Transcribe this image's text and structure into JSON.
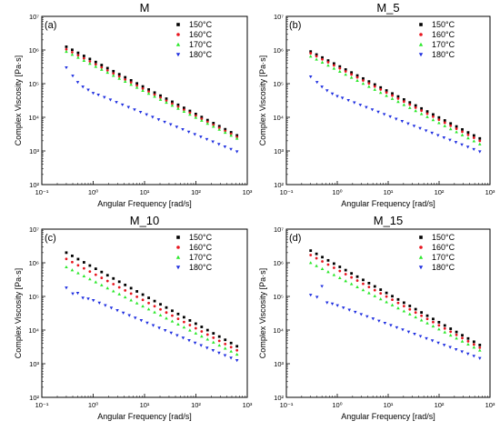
{
  "colors": {
    "s150": "#000000",
    "s160": "#e8161f",
    "s170": "#2be82b",
    "s180": "#1f2fe0"
  },
  "chart_data": [
    {
      "type": "scatter",
      "title": "M",
      "panel_label": "(a)",
      "xlabel": "Angular Frequency [rad/s]",
      "ylabel": "Complex Viscosity [Pa·s]",
      "xscale": "log",
      "yscale": "log",
      "xlim": [
        0.1,
        1000
      ],
      "ylim": [
        100,
        10000000
      ],
      "xticks": [
        "10⁻¹",
        "10⁰",
        "10¹",
        "10²",
        "10³"
      ],
      "yticks": [
        "10²",
        "10³",
        "10⁴",
        "10⁵",
        "10⁶",
        "10⁷"
      ],
      "legend_position": "top-right",
      "series": [
        {
          "name": "150°C",
          "marker": "square",
          "fit": [
            1250000,
            2900
          ]
        },
        {
          "name": "160°C",
          "marker": "circle",
          "fit": [
            1050000,
            2600
          ]
        },
        {
          "name": "170°C",
          "marker": "triangle-up",
          "fit": [
            900000,
            2350
          ]
        },
        {
          "name": "180°C",
          "marker": "triangle-down",
          "fit": [
            300000,
            950
          ],
          "low": [
            [
              0.3,
              300000
            ],
            [
              0.4,
              170000
            ],
            [
              0.5,
              110000
            ],
            [
              0.63,
              80000
            ],
            [
              0.8,
              65000
            ],
            [
              1.0,
              52000
            ]
          ]
        }
      ]
    },
    {
      "type": "scatter",
      "title": "M_5",
      "panel_label": "(b)",
      "xlabel": "Angular Frequency [rad/s]",
      "ylabel": "Complex Viscosity [Pa·s]",
      "xscale": "log",
      "yscale": "log",
      "xlim": [
        0.1,
        1000
      ],
      "ylim": [
        100,
        10000000
      ],
      "xticks": [
        "10⁻¹",
        "10⁰",
        "10¹",
        "10²",
        "10³"
      ],
      "yticks": [
        "10²",
        "10³",
        "10⁴",
        "10⁵",
        "10⁶",
        "10⁷"
      ],
      "legend_position": "top-right",
      "series": [
        {
          "name": "150°C",
          "marker": "square",
          "fit": [
            900000,
            2350
          ]
        },
        {
          "name": "160°C",
          "marker": "circle",
          "fit": [
            800000,
            2000
          ]
        },
        {
          "name": "170°C",
          "marker": "triangle-up",
          "fit": [
            650000,
            1600
          ]
        },
        {
          "name": "180°C",
          "marker": "triangle-down",
          "fit": [
            160000,
            950
          ],
          "low": [
            [
              0.3,
              160000
            ],
            [
              0.4,
              110000
            ],
            [
              0.5,
              80000
            ],
            [
              0.63,
              62000
            ],
            [
              0.8,
              50000
            ],
            [
              1.0,
              42000
            ]
          ]
        }
      ]
    },
    {
      "type": "scatter",
      "title": "M_10",
      "panel_label": "(c)",
      "xlabel": "Angular Frequency [rad/s]",
      "ylabel": "Complex Viscosity [Pa·s]",
      "xscale": "log",
      "yscale": "log",
      "xlim": [
        0.1,
        1000
      ],
      "ylim": [
        100,
        10000000
      ],
      "xticks": [
        "10⁻¹",
        "10⁰",
        "10¹",
        "10²",
        "10³"
      ],
      "yticks": [
        "10²",
        "10³",
        "10⁴",
        "10⁵",
        "10⁶",
        "10⁷"
      ],
      "legend_position": "top-right",
      "series": [
        {
          "name": "150°C",
          "marker": "square",
          "fit": [
            2000000,
            3300
          ]
        },
        {
          "name": "160°C",
          "marker": "circle",
          "fit": [
            1300000,
            2500
          ]
        },
        {
          "name": "170°C",
          "marker": "triangle-up",
          "fit": [
            750000,
            1900
          ]
        },
        {
          "name": "180°C",
          "marker": "triangle-down",
          "fit": [
            180000,
            1250
          ],
          "low": [
            [
              0.3,
              180000
            ],
            [
              0.4,
              120000
            ],
            [
              0.5,
              125000
            ],
            [
              0.63,
              90000
            ],
            [
              0.8,
              85000
            ]
          ]
        }
      ]
    },
    {
      "type": "scatter",
      "title": "M_15",
      "panel_label": "(d)",
      "xlabel": "Angular Frequency [rad/s]",
      "ylabel": "Complex Viscosity [Pa·s]",
      "xscale": "log",
      "yscale": "log",
      "xlim": [
        0.1,
        1000
      ],
      "ylim": [
        100,
        10000000
      ],
      "xticks": [
        "10⁻¹",
        "10⁰",
        "10¹",
        "10²",
        "10³"
      ],
      "yticks": [
        "10²",
        "10³",
        "10⁴",
        "10⁵",
        "10⁶",
        "10⁷"
      ],
      "legend_position": "top-right",
      "series": [
        {
          "name": "150°C",
          "marker": "square",
          "fit": [
            2300000,
            3600
          ]
        },
        {
          "name": "160°C",
          "marker": "circle",
          "fit": [
            1700000,
            3000
          ]
        },
        {
          "name": "170°C",
          "marker": "triangle-up",
          "fit": [
            1000000,
            2500
          ]
        },
        {
          "name": "180°C",
          "marker": "triangle-down",
          "fit": [
            110000,
            1450
          ],
          "low": [
            [
              0.3,
              110000
            ],
            [
              0.4,
              95000
            ],
            [
              0.5,
              200000
            ],
            [
              0.63,
              65000
            ],
            [
              0.8,
              60000
            ]
          ]
        }
      ]
    }
  ]
}
